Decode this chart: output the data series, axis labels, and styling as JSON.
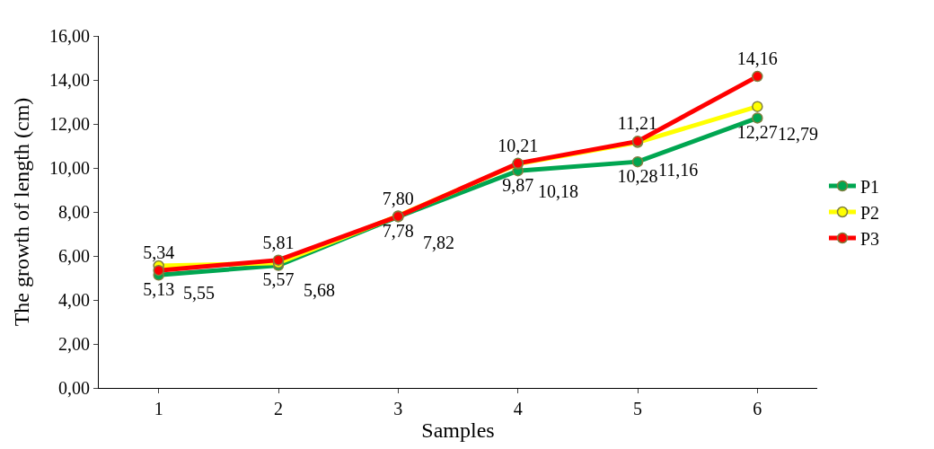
{
  "chart_data": {
    "type": "line",
    "xlabel": "Samples",
    "ylabel": "The growth of length (cm)",
    "categories": [
      "1",
      "2",
      "3",
      "4",
      "5",
      "6"
    ],
    "series": [
      {
        "name": "P1",
        "color": "#00a651",
        "values": [
          5.13,
          5.57,
          7.78,
          9.87,
          10.28,
          12.27
        ],
        "value_labels": [
          "5,13",
          "5,57",
          "7,78",
          "9,87",
          "10,28",
          "12,27"
        ]
      },
      {
        "name": "P2",
        "color": "#ffff00",
        "values": [
          5.55,
          5.68,
          7.82,
          10.18,
          11.16,
          12.79
        ],
        "value_labels": [
          "5,55",
          "5,68",
          "7,82",
          "10,18",
          "11,16",
          "12,79"
        ]
      },
      {
        "name": "P3",
        "color": "#ff0000",
        "values": [
          5.34,
          5.81,
          7.8,
          10.21,
          11.21,
          14.16
        ],
        "value_labels": [
          "5,34",
          "5,81",
          "7,80",
          "10,21",
          "11,21",
          "14,16"
        ]
      }
    ],
    "ylim": [
      0,
      16
    ],
    "yticks": [
      {
        "value": 0,
        "label": "0,00"
      },
      {
        "value": 2,
        "label": "2,00"
      },
      {
        "value": 4,
        "label": "4,00"
      },
      {
        "value": 6,
        "label": "6,00"
      },
      {
        "value": 8,
        "label": "8,00"
      },
      {
        "value": 10,
        "label": "10,00"
      },
      {
        "value": 12,
        "label": "12,00"
      },
      {
        "value": 14,
        "label": "14,00"
      },
      {
        "value": 16,
        "label": "16,00"
      }
    ],
    "legend": "right",
    "marker": "circle",
    "line_style": "solid"
  }
}
